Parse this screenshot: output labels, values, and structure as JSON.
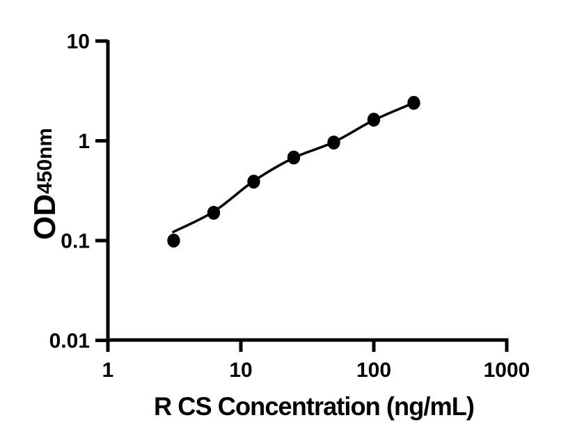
{
  "figure": {
    "background": "#ffffff",
    "ink_color": "#000000"
  },
  "chart_data": {
    "type": "scatter",
    "title": "",
    "xlabel": "R CS Concentration (ng/mL)",
    "ylabel": "OD",
    "ylabel_subscript": "450nm",
    "x_scale": "log",
    "y_scale": "log",
    "xlim": [
      1,
      1000
    ],
    "ylim": [
      0.01,
      10
    ],
    "grid": false,
    "legend": "none",
    "x_ticks": [
      {
        "value": 1,
        "label": "1"
      },
      {
        "value": 10,
        "label": "10"
      },
      {
        "value": 100,
        "label": "100"
      },
      {
        "value": 1000,
        "label": "1000"
      }
    ],
    "y_ticks": [
      {
        "value": 10,
        "label": "10"
      },
      {
        "value": 1,
        "label": "1"
      },
      {
        "value": 0.1,
        "label": "0.1"
      },
      {
        "value": 0.01,
        "label": "0.01"
      }
    ],
    "series": [
      {
        "name": "standard-points",
        "marker": "filled-circle",
        "color": "#000000",
        "x": [
          3.125,
          6.25,
          12.5,
          25,
          50,
          100,
          200
        ],
        "y": [
          0.1,
          0.19,
          0.39,
          0.68,
          0.96,
          1.63,
          2.4
        ]
      }
    ],
    "fit_curve": {
      "name": "fitted-standard-curve",
      "color": "#000000",
      "x": [
        3.1,
        6.25,
        12.5,
        25,
        50,
        100,
        200
      ],
      "y": [
        0.122,
        0.195,
        0.395,
        0.675,
        0.97,
        1.61,
        2.4
      ]
    }
  }
}
